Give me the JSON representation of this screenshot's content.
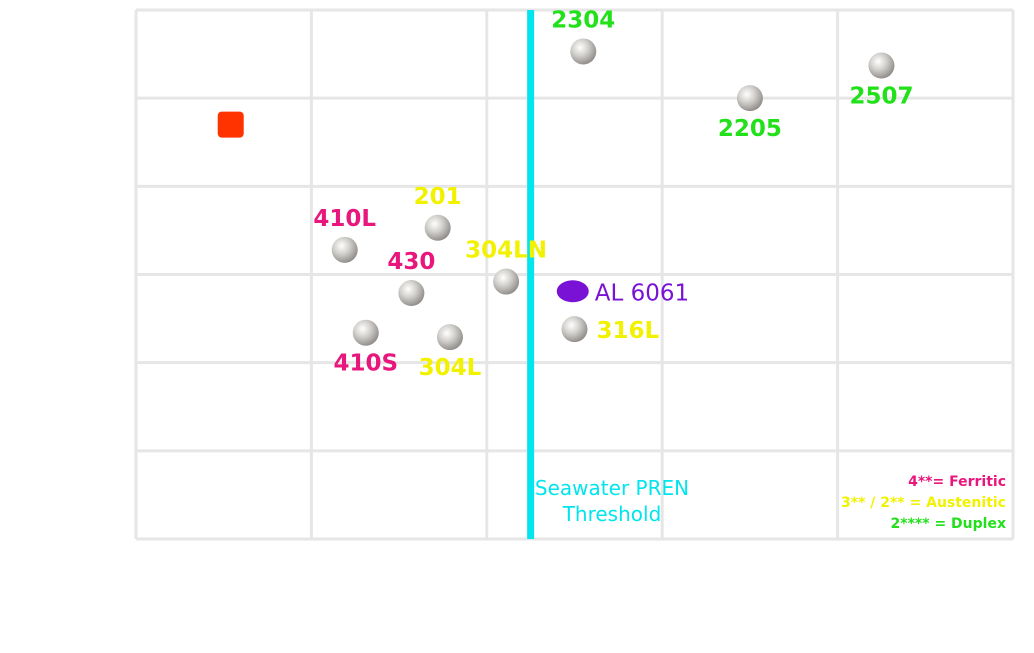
{
  "chart_data": {
    "type": "scatter",
    "title": "",
    "xlabel": "",
    "ylabel": "",
    "xlim": [
      0,
      5
    ],
    "ylim": [
      0,
      6
    ],
    "grid": true,
    "legend_position": "bottom-right",
    "threshold": {
      "x": 2.25,
      "label_lines": [
        "Seawater PREN",
        "Threshold"
      ],
      "color": "#00e5ee"
    },
    "legend": [
      {
        "text": "4**= Ferritic",
        "color": "#e8177d"
      },
      {
        "text": "3** / 2** = Austenitic",
        "color": "#f2f200"
      },
      {
        "text": "2**** = Duplex",
        "color": "#22e01a"
      }
    ],
    "points": [
      {
        "label": "2304",
        "x": 2.55,
        "y": 5.53,
        "family": "duplex",
        "color": "#22e01a",
        "label_pos": "above"
      },
      {
        "label": "2205",
        "x": 3.5,
        "y": 5.0,
        "family": "duplex",
        "color": "#22e01a",
        "label_pos": "below"
      },
      {
        "label": "2507",
        "x": 4.25,
        "y": 5.37,
        "family": "duplex",
        "color": "#22e01a",
        "label_pos": "below"
      },
      {
        "label": "201",
        "x": 1.72,
        "y": 3.53,
        "family": "austenitic",
        "color": "#f2f200",
        "label_pos": "above"
      },
      {
        "label": "410L",
        "x": 1.19,
        "y": 3.28,
        "family": "ferritic",
        "color": "#e8177d",
        "label_pos": "above"
      },
      {
        "label": "430",
        "x": 1.57,
        "y": 2.79,
        "family": "ferritic",
        "color": "#e8177d",
        "label_pos": "above"
      },
      {
        "label": "304LN",
        "x": 2.11,
        "y": 2.92,
        "family": "austenitic",
        "color": "#f2f200",
        "label_pos": "above"
      },
      {
        "label": "410S",
        "x": 1.31,
        "y": 2.34,
        "family": "ferritic",
        "color": "#e8177d",
        "label_pos": "below"
      },
      {
        "label": "304L",
        "x": 1.79,
        "y": 2.29,
        "family": "austenitic",
        "color": "#f2f200",
        "label_pos": "below"
      },
      {
        "label": "316L",
        "x": 2.5,
        "y": 2.38,
        "family": "austenitic",
        "color": "#f2f200",
        "label_pos": "right"
      },
      {
        "label": "AL 6061",
        "x": 2.49,
        "y": 2.81,
        "family": "aluminum",
        "color": "#7a12d6",
        "label_pos": "right"
      }
    ],
    "extra_marker": {
      "x": 0.54,
      "y": 4.7,
      "color": "#ff3300",
      "shape": "square"
    }
  }
}
